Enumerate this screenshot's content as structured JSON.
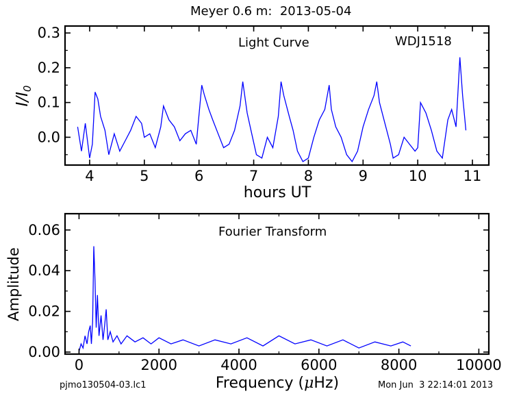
{
  "figure": {
    "title": "Meyer 0.6 m:  2013-05-04",
    "footer_left": "pjmo130504-03.lc1",
    "footer_right": "Mon Jun  3 22:14:01 2013",
    "line_color": "#0000ff"
  },
  "chart_data": [
    {
      "type": "line",
      "name": "light-curve",
      "annotation": "Light Curve",
      "object_label": "WDJ1518",
      "xlabel": "hours UT",
      "ylabel": "I/I",
      "ylabel_subscript": "0",
      "xlim": [
        3.55,
        11.3
      ],
      "ylim": [
        -0.08,
        0.32
      ],
      "x_ticks": [
        4,
        5,
        6,
        7,
        8,
        9,
        10,
        11
      ],
      "x_tick_labels": [
        "4",
        "5",
        "6",
        "7",
        "8",
        "9",
        "10",
        "11"
      ],
      "y_ticks": [
        0.0,
        0.1,
        0.2,
        0.3
      ],
      "y_tick_labels": [
        "0.0",
        "0.1",
        "0.2",
        "0.3"
      ],
      "x_minor_step": 0.5,
      "y_minor_step": 0.05,
      "series": [
        {
          "x": [
            3.78,
            3.85,
            3.92,
            4.0,
            4.05,
            4.1,
            4.15,
            4.2,
            4.28,
            4.35,
            4.45,
            4.55,
            4.65,
            4.75,
            4.85,
            4.95,
            5.0,
            5.1,
            5.2,
            5.3,
            5.35,
            5.45,
            5.55,
            5.65,
            5.75,
            5.85,
            5.95,
            6.05,
            6.1,
            6.18,
            6.25,
            6.35,
            6.45,
            6.55,
            6.65,
            6.75,
            6.8,
            6.88,
            6.95,
            7.05,
            7.15,
            7.25,
            7.35,
            7.45,
            7.5,
            7.55,
            7.65,
            7.72,
            7.8,
            7.9,
            8.0,
            8.1,
            8.2,
            8.3,
            8.38,
            8.42,
            8.5,
            8.6,
            8.7,
            8.8,
            8.9,
            9.0,
            9.1,
            9.2,
            9.25,
            9.3,
            9.4,
            9.5,
            9.55,
            9.65,
            9.75,
            9.85,
            9.95,
            10.0,
            10.05,
            10.15,
            10.25,
            10.35,
            10.45,
            10.55,
            10.62,
            10.7,
            10.77,
            10.82,
            10.88
          ],
          "y": [
            0.03,
            -0.04,
            0.04,
            -0.06,
            -0.02,
            0.13,
            0.11,
            0.06,
            0.02,
            -0.05,
            0.01,
            -0.04,
            -0.01,
            0.02,
            0.06,
            0.04,
            0.0,
            0.01,
            -0.03,
            0.03,
            0.09,
            0.05,
            0.03,
            -0.01,
            0.01,
            0.02,
            -0.02,
            0.15,
            0.12,
            0.08,
            0.05,
            0.01,
            -0.03,
            -0.02,
            0.02,
            0.09,
            0.16,
            0.07,
            0.02,
            -0.05,
            -0.06,
            0.0,
            -0.03,
            0.06,
            0.16,
            0.12,
            0.06,
            0.02,
            -0.04,
            -0.07,
            -0.06,
            0.0,
            0.05,
            0.08,
            0.15,
            0.08,
            0.03,
            0.0,
            -0.05,
            -0.07,
            -0.04,
            0.03,
            0.08,
            0.12,
            0.16,
            0.1,
            0.04,
            -0.02,
            -0.06,
            -0.05,
            0.0,
            -0.02,
            -0.04,
            -0.03,
            0.1,
            0.07,
            0.02,
            -0.04,
            -0.06,
            0.05,
            0.08,
            0.03,
            0.23,
            0.12,
            0.02
          ]
        }
      ]
    },
    {
      "type": "line",
      "name": "fourier-transform",
      "annotation": "Fourier Transform",
      "xlabel": "Frequency (",
      "xlabel_symbol": "μ",
      "xlabel_suffix": "Hz)",
      "ylabel": "Amplitude",
      "xlim": [
        -350,
        10250
      ],
      "ylim": [
        -0.001,
        0.068
      ],
      "x_ticks": [
        0,
        2000,
        4000,
        6000,
        8000,
        10000
      ],
      "x_tick_labels": [
        "0",
        "2000",
        "4000",
        "6000",
        "8000",
        "10000"
      ],
      "y_ticks": [
        0.0,
        0.02,
        0.04,
        0.06
      ],
      "y_tick_labels": [
        "0.00",
        "0.02",
        "0.04",
        "0.06"
      ],
      "x_minor_step": 1000,
      "y_minor_step": 0.01,
      "series": [
        {
          "x": [
            0,
            50,
            100,
            150,
            200,
            240,
            280,
            310,
            340,
            370,
            400,
            430,
            460,
            500,
            550,
            600,
            640,
            680,
            720,
            780,
            850,
            950,
            1050,
            1200,
            1400,
            1600,
            1800,
            2000,
            2300,
            2600,
            3000,
            3400,
            3800,
            4200,
            4600,
            5000,
            5400,
            5800,
            6200,
            6600,
            7000,
            7400,
            7800,
            8100,
            8300
          ],
          "y": [
            0.0003,
            0.004,
            0.002,
            0.008,
            0.004,
            0.01,
            0.013,
            0.004,
            0.015,
            0.052,
            0.035,
            0.012,
            0.028,
            0.008,
            0.018,
            0.006,
            0.013,
            0.021,
            0.006,
            0.01,
            0.005,
            0.008,
            0.004,
            0.008,
            0.005,
            0.007,
            0.004,
            0.007,
            0.004,
            0.006,
            0.003,
            0.006,
            0.004,
            0.007,
            0.003,
            0.008,
            0.004,
            0.006,
            0.003,
            0.006,
            0.002,
            0.005,
            0.003,
            0.005,
            0.003
          ]
        }
      ]
    }
  ]
}
